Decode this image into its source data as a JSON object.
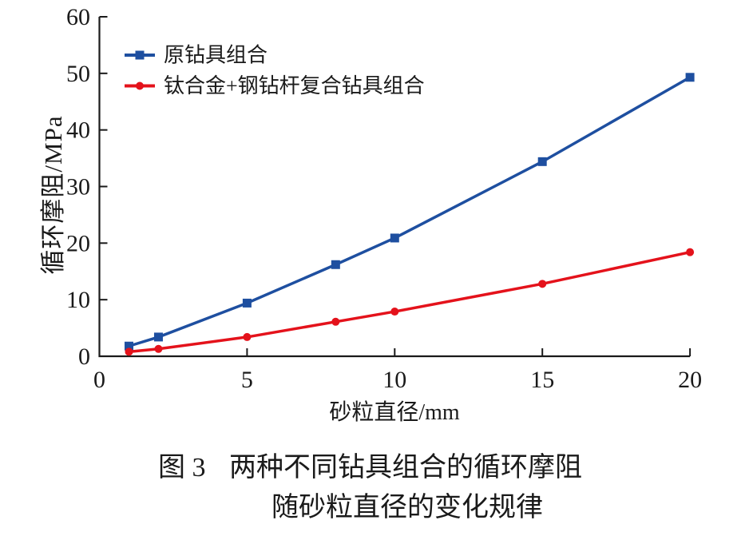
{
  "figure": {
    "caption_label": "图 3",
    "caption_line1": "两种不同钻具组合的循环摩阻",
    "caption_line2": "随砂粒直径的变化规律"
  },
  "chart_data": {
    "type": "line",
    "title": "",
    "xlabel": "砂粒直径/mm",
    "ylabel": "循环摩阻/MPa",
    "xlim": [
      0,
      20
    ],
    "ylim": [
      0,
      60
    ],
    "x_ticks": [
      0,
      5,
      10,
      15,
      20
    ],
    "y_ticks": [
      0,
      10,
      20,
      30,
      40,
      50,
      60
    ],
    "grid": false,
    "legend_position": "upper-left-inside",
    "x": [
      1,
      2,
      5,
      8,
      10,
      15,
      20
    ],
    "series": [
      {
        "name": "原钻具组合",
        "color": "#1e4fa0",
        "marker": "square",
        "values": [
          1.8,
          3.4,
          9.4,
          16.2,
          20.9,
          34.4,
          49.3
        ]
      },
      {
        "name": "钛合金+钢钻杆复合钻具组合",
        "color": "#e4121b",
        "marker": "circle",
        "values": [
          0.8,
          1.3,
          3.4,
          6.1,
          7.9,
          12.8,
          18.4
        ]
      }
    ],
    "colors": {
      "axis": "#1a1a1a",
      "text": "#1a1a1a",
      "background": "#ffffff"
    }
  }
}
